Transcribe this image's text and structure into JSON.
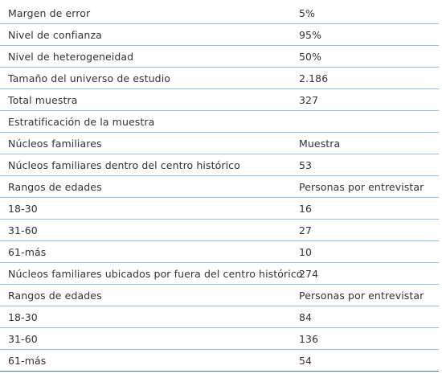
{
  "table": {
    "rows": [
      [
        "Margen de error",
        "5%"
      ],
      [
        "Nivel de confianza",
        "95%"
      ],
      [
        "Nivel de heterogeneidad",
        "50%"
      ],
      [
        "Tamaño del universo de estudio",
        "2.186"
      ],
      [
        "Total muestra",
        "327"
      ],
      [
        "Estratificación de la muestra"
      ],
      [
        "Núcleos familiares",
        "Muestra"
      ],
      [
        "Núcleos familiares dentro del centro histórico",
        "53"
      ],
      [
        "Rangos de edades",
        "Personas por entrevistar"
      ],
      [
        "18-30",
        "16"
      ],
      [
        "31-60",
        "27"
      ],
      [
        "61-más",
        "10"
      ],
      [
        "Núcleos familiares ubicados por fuera del centro histórico",
        "274"
      ],
      [
        "Rangos de edades",
        "Personas por entrevistar"
      ],
      [
        "18-30",
        "84"
      ],
      [
        "31-60",
        "136"
      ],
      [
        "61-más",
        "54"
      ]
    ]
  }
}
